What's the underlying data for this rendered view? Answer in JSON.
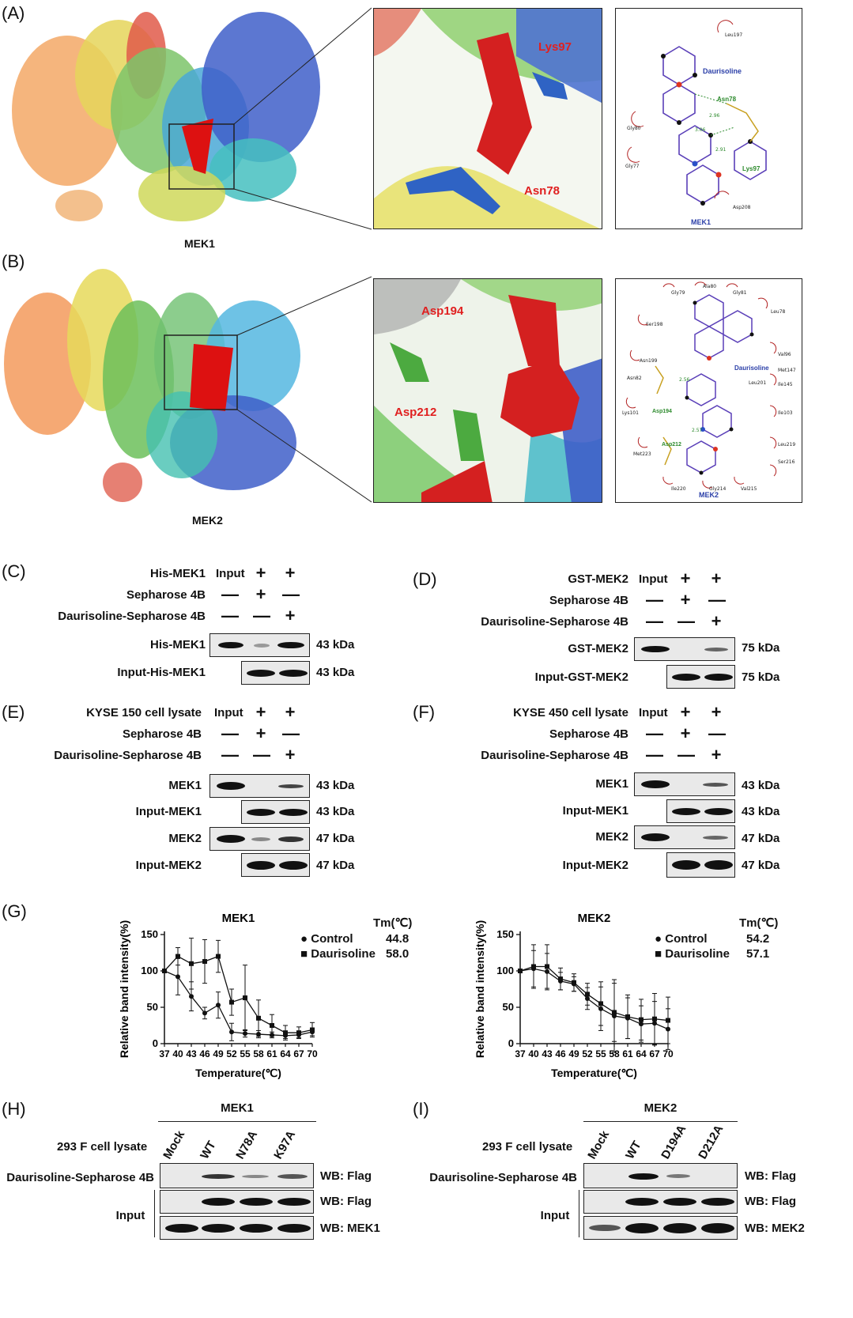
{
  "panel_A": {
    "letter": "(A)",
    "protein_label": "MEK1",
    "zoom_labels": [
      "Lys97",
      "Asn78"
    ],
    "diagram": {
      "ligand": "Daurisoline",
      "protein": "MEK1",
      "residues_hbond": [
        "Asn78",
        "Lys97"
      ],
      "residues_hydrophobic": [
        "Leu197",
        "Gly80",
        "Gly77",
        "Asp208"
      ],
      "distances": [
        "2.96",
        "3.06",
        "2.91"
      ]
    }
  },
  "panel_B": {
    "letter": "(B)",
    "protein_label": "MEK2",
    "zoom_labels": [
      "Asp194",
      "Asp212"
    ],
    "diagram": {
      "ligand": "Daurisoline",
      "protein": "MEK2",
      "residues_hbond": [
        "Asp194",
        "Asp212"
      ],
      "residues_hydrophobic": [
        "Gly79",
        "Ala80",
        "Gly81",
        "Leu78",
        "Ser198",
        "Val96",
        "Asn199",
        "Met147",
        "Asn82",
        "Leu201",
        "Ile145",
        "Lys101",
        "Ile103",
        "Met223",
        "Leu219",
        "Ser216",
        "Ile220",
        "Gly214",
        "Val215"
      ],
      "distances": [
        "2.56",
        "2.57"
      ]
    }
  },
  "panel_C": {
    "letter": "(C)",
    "header_rows": [
      {
        "label": "His-MEK1",
        "signs": [
          "Input",
          "+",
          "+"
        ]
      },
      {
        "label": "Sepharose 4B",
        "signs": [
          "—",
          "+",
          "—"
        ]
      },
      {
        "label": "Daurisoline-Sepharose 4B",
        "signs": [
          "—",
          "—",
          "+"
        ]
      }
    ],
    "blots": [
      {
        "label": "His-MEK1",
        "size": "43 kDa"
      },
      {
        "label": "Input-His-MEK1",
        "size": "43 kDa"
      }
    ]
  },
  "panel_D": {
    "letter": "(D)",
    "header_rows": [
      {
        "label": "GST-MEK2",
        "signs": [
          "Input",
          "+",
          "+"
        ]
      },
      {
        "label": "Sepharose 4B",
        "signs": [
          "—",
          "+",
          "—"
        ]
      },
      {
        "label": "Daurisoline-Sepharose 4B",
        "signs": [
          "—",
          "—",
          "+"
        ]
      }
    ],
    "blots": [
      {
        "label": "GST-MEK2",
        "size": "75 kDa"
      },
      {
        "label": "Input-GST-MEK2",
        "size": "75 kDa"
      }
    ]
  },
  "panel_E": {
    "letter": "(E)",
    "header_rows": [
      {
        "label": "KYSE 150 cell lysate",
        "signs": [
          "Input",
          "+",
          "+"
        ]
      },
      {
        "label": "Sepharose 4B",
        "signs": [
          "—",
          "+",
          "—"
        ]
      },
      {
        "label": "Daurisoline-Sepharose 4B",
        "signs": [
          "—",
          "—",
          "+"
        ]
      }
    ],
    "blots": [
      {
        "label": "MEK1",
        "size": "43 kDa"
      },
      {
        "label": "Input-MEK1",
        "size": "43 kDa"
      },
      {
        "label": "MEK2",
        "size": "47 kDa"
      },
      {
        "label": "Input-MEK2",
        "size": "47 kDa"
      }
    ]
  },
  "panel_F": {
    "letter": "(F)",
    "header_rows": [
      {
        "label": "KYSE 450 cell lysate",
        "signs": [
          "Input",
          "+",
          "+"
        ]
      },
      {
        "label": "Sepharose 4B",
        "signs": [
          "—",
          "+",
          "—"
        ]
      },
      {
        "label": "Daurisoline-Sepharose 4B",
        "signs": [
          "—",
          "—",
          "+"
        ]
      }
    ],
    "blots": [
      {
        "label": "MEK1",
        "size": "43 kDa"
      },
      {
        "label": "Input-MEK1",
        "size": "43 kDa"
      },
      {
        "label": "MEK2",
        "size": "47 kDa"
      },
      {
        "label": "Input-MEK2",
        "size": "47 kDa"
      }
    ]
  },
  "panel_G": {
    "letter": "(G)",
    "tm_header": "Tm(℃)",
    "xlabel": "Temperature(℃)",
    "ylabel": "Relative band intensity(%)"
  },
  "chart_data": [
    {
      "type": "line",
      "title": "MEK1",
      "xlabel": "Temperature(℃)",
      "ylabel": "Relative band intensity(%)",
      "x": [
        37,
        40,
        43,
        46,
        49,
        52,
        55,
        58,
        61,
        64,
        67,
        70
      ],
      "x_tick_labels": [
        "37",
        "40",
        "43",
        "46",
        "49",
        "52",
        "55",
        "58",
        "61",
        "64",
        "67",
        "70"
      ],
      "ylim": [
        0,
        150
      ],
      "yticks": [
        0,
        50,
        100,
        150
      ],
      "series": [
        {
          "name": "Control",
          "marker": "circle",
          "tm": "44.8",
          "values": [
            100,
            92,
            65,
            42,
            53,
            16,
            14,
            13,
            12,
            11,
            12,
            16
          ],
          "err": [
            0,
            25,
            20,
            8,
            18,
            12,
            5,
            5,
            4,
            4,
            4,
            5
          ]
        },
        {
          "name": "Daurisoline",
          "marker": "square",
          "tm": "58.0",
          "values": [
            100,
            120,
            110,
            113,
            120,
            57,
            63,
            35,
            25,
            15,
            15,
            19
          ],
          "err": [
            0,
            12,
            35,
            30,
            22,
            18,
            45,
            25,
            15,
            10,
            8,
            10
          ]
        }
      ],
      "legend": "top-right"
    },
    {
      "type": "line",
      "title": "MEK2",
      "xlabel": "Temperature(℃)",
      "ylabel": "Relative band intensity(%)",
      "x": [
        37,
        40,
        43,
        46,
        49,
        52,
        55,
        58,
        61,
        64,
        67,
        70
      ],
      "x_tick_labels": [
        "37",
        "40",
        "43",
        "46",
        "49",
        "52",
        "55",
        "58",
        "61",
        "64",
        "67",
        "70"
      ],
      "ylim": [
        0,
        150
      ],
      "yticks": [
        0,
        50,
        100,
        150
      ],
      "series": [
        {
          "name": "Control",
          "marker": "circle",
          "tm": "54.2",
          "values": [
            100,
            103,
            99,
            86,
            82,
            62,
            48,
            38,
            35,
            27,
            28,
            20
          ],
          "err": [
            0,
            25,
            25,
            12,
            10,
            15,
            30,
            50,
            28,
            25,
            30,
            28
          ]
        },
        {
          "name": "Daurisoline",
          "marker": "square",
          "tm": "57.1",
          "values": [
            100,
            106,
            106,
            89,
            84,
            68,
            55,
            43,
            37,
            33,
            34,
            32
          ],
          "err": [
            0,
            30,
            30,
            15,
            12,
            15,
            30,
            40,
            30,
            28,
            35,
            32
          ]
        }
      ],
      "legend": "top-right"
    }
  ],
  "panel_H": {
    "letter": "(H)",
    "group": "MEK1",
    "lysate": "293 F cell lysate",
    "lanes": [
      "Mock",
      "WT",
      "N78A",
      "K97A"
    ],
    "rows": [
      {
        "label": "Daurisoline-Sepharose 4B",
        "wb": "WB: Flag"
      },
      {
        "label": "Input",
        "wb": "WB: Flag"
      },
      {
        "label": "",
        "wb": "WB: MEK1"
      }
    ]
  },
  "panel_I": {
    "letter": "(I)",
    "group": "MEK2",
    "lysate": "293 F cell lysate",
    "lanes": [
      "Mock",
      "WT",
      "D194A",
      "D212A"
    ],
    "rows": [
      {
        "label": "Daurisoline-Sepharose 4B",
        "wb": "WB: Flag"
      },
      {
        "label": "Input",
        "wb": "WB: Flag"
      },
      {
        "label": "",
        "wb": "WB: MEK2"
      }
    ]
  },
  "colors": {
    "red_label": "#e02020",
    "blue_label": "#2b3fa8",
    "green_label": "#2c8a2c",
    "hydrophobic": "#b22222"
  }
}
